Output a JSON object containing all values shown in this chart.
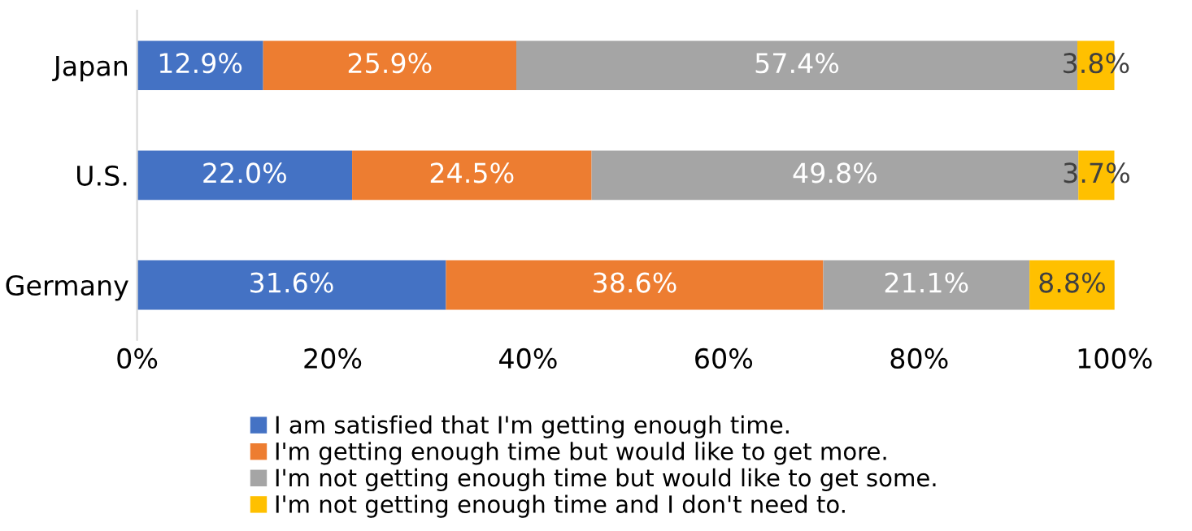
{
  "chart_data": {
    "type": "bar",
    "orientation": "horizontal",
    "stacked": true,
    "categories": [
      "Japan",
      "U.S.",
      "Germany"
    ],
    "series": [
      {
        "name": "I am satisfied that I'm getting enough time.",
        "color": "#4472c4",
        "values": [
          12.9,
          22.0,
          31.6
        ],
        "value_labels": [
          "12.9%",
          "22.0%",
          "31.6%"
        ]
      },
      {
        "name": "I'm getting enough time but would like to get more.",
        "color": "#ed7d31",
        "values": [
          25.9,
          24.5,
          38.6
        ],
        "value_labels": [
          "25.9%",
          "24.5%",
          "38.6%"
        ]
      },
      {
        "name": "I'm not getting enough time but would like to get some.",
        "color": "#a5a5a5",
        "values": [
          57.4,
          49.8,
          21.1
        ],
        "value_labels": [
          "57.4%",
          "49.8%",
          "21.1%"
        ]
      },
      {
        "name": "I'm not getting enough time and I don't need to.",
        "color": "#ffc000",
        "values": [
          3.8,
          3.7,
          8.8
        ],
        "value_labels": [
          "3.8%",
          "3.7%",
          "8.8%"
        ]
      }
    ],
    "xlim": [
      0,
      100
    ],
    "xticks": [
      {
        "value": 0,
        "label": "0%"
      },
      {
        "value": 20,
        "label": "20%"
      },
      {
        "value": 40,
        "label": "40%"
      },
      {
        "value": 60,
        "label": "60%"
      },
      {
        "value": 80,
        "label": "80%"
      },
      {
        "value": 100,
        "label": "100%"
      }
    ],
    "grid": false,
    "legend": "bottom"
  }
}
